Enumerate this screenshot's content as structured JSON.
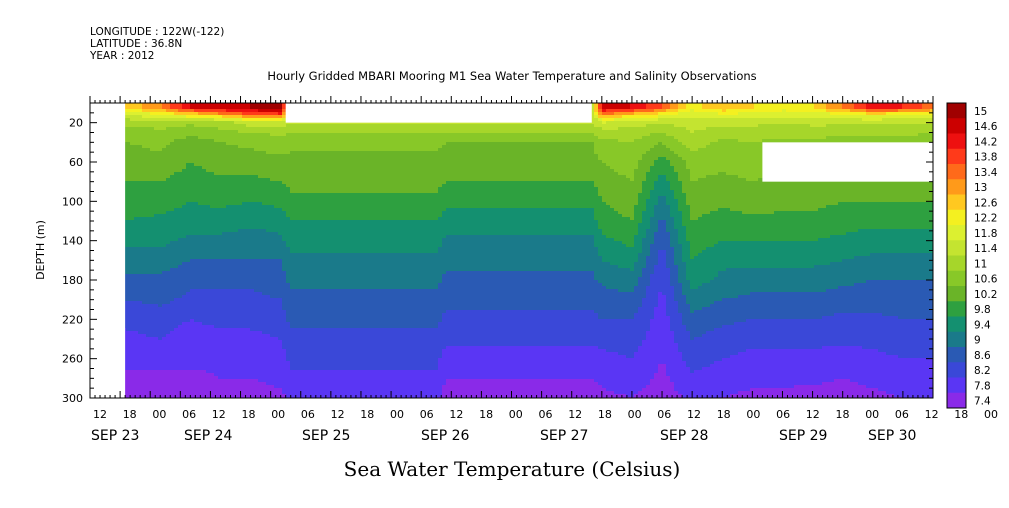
{
  "chart_data": {
    "type": "heatmap",
    "header_lines": [
      "LONGITUDE : 122W(-122)",
      "LATITUDE : 36.8N",
      "YEAR : 2012"
    ],
    "title": "Hourly Gridded MBARI Mooring M1 Sea Water Temperature and Salinity Observations",
    "variable_label": "Sea Water Temperature (Celsius)",
    "ylabel": "DEPTH (m)",
    "y_inverted": true,
    "ylim": [
      0,
      300
    ],
    "y_ticks": [
      20,
      60,
      100,
      140,
      180,
      220,
      260,
      300
    ],
    "x_unit": "hours since 2012-09-23 00:00",
    "xlim": [
      6,
      174
    ],
    "x_tick_labels": [
      "12",
      "18",
      "00",
      "06",
      "12",
      "18",
      "00",
      "06",
      "12",
      "18",
      "00",
      "06",
      "12",
      "18",
      "00",
      "06",
      "12",
      "18",
      "00",
      "06",
      "12",
      "18",
      "00",
      "06",
      "12",
      "18",
      "00",
      "06",
      "12",
      "18",
      "00",
      "06"
    ],
    "x_tick_hours": [
      12,
      18,
      24,
      30,
      36,
      42,
      48,
      54,
      60,
      66,
      72,
      78,
      84,
      90,
      96,
      102,
      108,
      114,
      120,
      126,
      132,
      138,
      144,
      150,
      156,
      162,
      168,
      174,
      180,
      186,
      192,
      198
    ],
    "day_labels": [
      "SEP 23",
      "SEP 24",
      "SEP 25",
      "SEP 26",
      "SEP 27",
      "SEP 28",
      "SEP 29",
      "SEP 30"
    ],
    "day_label_hours": [
      12,
      36,
      60,
      84,
      108,
      132,
      156,
      174
    ],
    "colorbar_levels": [
      "15",
      "14.6",
      "14.2",
      "13.8",
      "13.4",
      "13",
      "12.6",
      "12.2",
      "11.8",
      "11.4",
      "11",
      "10.6",
      "10.2",
      "9.8",
      "9.4",
      "9",
      "8.6",
      "8.2",
      "7.8",
      "7.4"
    ],
    "colorbar_colors": [
      "#a00000",
      "#cc0000",
      "#ee1010",
      "#ff3a1a",
      "#ff6a1a",
      "#ff9a1a",
      "#ffc820",
      "#f4f020",
      "#dcf030",
      "#c4e430",
      "#a6d62a",
      "#88c828",
      "#6ab428",
      "#2ea040",
      "#149070",
      "#1a7a8a",
      "#2a5ab4",
      "#3a48d8",
      "#5a36f4",
      "#8a2ae8"
    ],
    "missing_regions": [
      {
        "x": [
          6,
          13
        ],
        "depth": [
          0,
          300
        ]
      },
      {
        "x": [
          45,
          106
        ],
        "depth": [
          0,
          20
        ]
      },
      {
        "x": [
          140,
          174
        ],
        "depth": [
          40,
          80
        ]
      }
    ],
    "profile_depths": [
      5,
      10,
      15,
      20,
      30,
      40,
      60,
      80,
      100,
      120,
      140,
      160,
      180,
      200,
      220,
      240,
      260,
      280,
      300
    ],
    "profiles": [
      {
        "hour": 13,
        "temps": [
          12.6,
          12.0,
          11.5,
          11.1,
          10.8,
          10.6,
          10.4,
          10.2,
          10.0,
          9.8,
          9.5,
          9.2,
          8.9,
          8.6,
          8.3,
          8.1,
          7.9,
          7.7,
          7.5
        ]
      },
      {
        "hour": 20,
        "temps": [
          13.4,
          12.4,
          11.8,
          11.2,
          10.9,
          10.7,
          10.5,
          10.2,
          10.0,
          9.7,
          9.5,
          9.2,
          8.9,
          8.7,
          8.4,
          8.2,
          7.9,
          7.7,
          7.5
        ]
      },
      {
        "hour": 26,
        "temps": [
          14.6,
          13.0,
          12.0,
          11.1,
          10.7,
          10.4,
          10.2,
          10.0,
          9.8,
          9.6,
          9.3,
          9.0,
          8.7,
          8.5,
          8.2,
          8.0,
          7.9,
          7.7,
          7.6
        ]
      },
      {
        "hour": 32,
        "temps": [
          14.6,
          13.6,
          12.2,
          11.2,
          10.9,
          10.6,
          10.4,
          10.1,
          9.9,
          9.6,
          9.3,
          9.0,
          8.7,
          8.5,
          8.3,
          8.1,
          7.9,
          7.8,
          7.6
        ]
      },
      {
        "hour": 38,
        "temps": [
          15.0,
          14.2,
          12.8,
          11.6,
          11.0,
          10.7,
          10.4,
          10.1,
          9.8,
          9.5,
          9.2,
          9.0,
          8.7,
          8.5,
          8.3,
          8.1,
          7.9,
          7.8,
          7.6
        ]
      },
      {
        "hour": 44,
        "temps": [
          15.0,
          14.4,
          13.0,
          11.7,
          11.1,
          10.8,
          10.5,
          10.2,
          9.9,
          9.6,
          9.3,
          9.0,
          8.8,
          8.6,
          8.4,
          8.2,
          8.0,
          7.9,
          7.7
        ]
      },
      {
        "hour": 46,
        "temps": [
          11.4,
          11.4,
          11.4,
          11.4,
          11.0,
          10.7,
          10.5,
          10.3,
          10.1,
          9.8,
          9.6,
          9.3,
          9.1,
          8.9,
          8.7,
          8.5,
          8.3,
          8.1,
          7.9
        ]
      },
      {
        "hour": 75,
        "temps": [
          11.4,
          11.4,
          11.4,
          11.4,
          11.0,
          10.7,
          10.5,
          10.3,
          10.1,
          9.8,
          9.6,
          9.3,
          9.1,
          8.9,
          8.7,
          8.5,
          8.3,
          8.1,
          7.9
        ]
      },
      {
        "hour": 77,
        "temps": [
          11.4,
          11.4,
          11.4,
          11.4,
          11.0,
          10.6,
          10.4,
          10.2,
          9.9,
          9.6,
          9.3,
          9.1,
          8.9,
          8.7,
          8.5,
          8.3,
          8.0,
          7.8,
          7.6
        ]
      },
      {
        "hour": 106,
        "temps": [
          11.4,
          11.4,
          11.4,
          11.4,
          11.0,
          10.6,
          10.4,
          10.2,
          9.9,
          9.6,
          9.3,
          9.1,
          8.9,
          8.7,
          8.5,
          8.3,
          8.0,
          7.8,
          7.6
        ]
      },
      {
        "hour": 108,
        "temps": [
          14.8,
          13.8,
          12.6,
          11.8,
          11.2,
          10.9,
          10.6,
          10.4,
          10.2,
          10.0,
          9.7,
          9.4,
          9.1,
          8.8,
          8.6,
          8.3,
          8.1,
          7.9,
          7.7
        ]
      },
      {
        "hour": 114,
        "temps": [
          14.6,
          13.2,
          12.2,
          11.6,
          11.2,
          11.0,
          10.8,
          10.6,
          10.4,
          10.2,
          9.9,
          9.6,
          9.2,
          8.9,
          8.6,
          8.4,
          8.2,
          8.0,
          7.8
        ]
      },
      {
        "hour": 120,
        "temps": [
          13.8,
          12.6,
          12.0,
          11.4,
          11.0,
          10.6,
          10.0,
          9.6,
          9.2,
          8.9,
          8.6,
          8.4,
          8.2,
          8.1,
          8.0,
          7.9,
          7.8,
          7.7,
          7.6
        ]
      },
      {
        "hour": 126,
        "temps": [
          12.4,
          12.0,
          11.8,
          11.6,
          11.4,
          11.2,
          10.8,
          10.6,
          10.4,
          10.2,
          10.0,
          9.8,
          9.6,
          9.2,
          8.9,
          8.6,
          8.4,
          8.1,
          7.9
        ]
      },
      {
        "hour": 132,
        "temps": [
          13.0,
          12.3,
          11.9,
          11.5,
          11.2,
          10.9,
          10.7,
          10.5,
          10.3,
          10.0,
          9.8,
          9.5,
          9.3,
          9.0,
          8.7,
          8.4,
          8.2,
          8.0,
          7.8
        ]
      },
      {
        "hour": 138,
        "temps": [
          12.6,
          12.2,
          11.8,
          11.5,
          11.2,
          11.0,
          10.8,
          10.6,
          10.4,
          10.1,
          9.8,
          9.5,
          9.2,
          8.9,
          8.6,
          8.3,
          8.1,
          7.9,
          7.7
        ]
      },
      {
        "hour": 144,
        "temps": [
          12.4,
          12.0,
          11.8,
          11.4,
          11.1,
          10.9,
          10.7,
          10.5,
          10.3,
          10.1,
          9.8,
          9.5,
          9.2,
          8.9,
          8.6,
          8.3,
          8.1,
          7.9,
          7.7
        ]
      },
      {
        "hour": 150,
        "temps": [
          12.6,
          12.1,
          11.8,
          11.5,
          11.2,
          10.9,
          10.7,
          10.5,
          10.3,
          10.1,
          9.8,
          9.5,
          9.2,
          8.9,
          8.6,
          8.3,
          8.1,
          7.9,
          7.6
        ]
      },
      {
        "hour": 156,
        "temps": [
          13.4,
          12.4,
          11.9,
          11.5,
          11.1,
          10.8,
          10.6,
          10.4,
          10.2,
          10.0,
          9.7,
          9.4,
          9.1,
          8.8,
          8.5,
          8.3,
          8.0,
          7.8,
          7.6
        ]
      },
      {
        "hour": 162,
        "temps": [
          14.4,
          12.8,
          12.0,
          11.5,
          11.1,
          10.8,
          10.6,
          10.4,
          10.2,
          9.9,
          9.6,
          9.3,
          9.0,
          8.8,
          8.5,
          8.3,
          8.1,
          7.9,
          7.7
        ]
      },
      {
        "hour": 168,
        "temps": [
          14.2,
          12.6,
          11.9,
          11.5,
          11.1,
          10.8,
          10.6,
          10.4,
          10.2,
          9.9,
          9.6,
          9.3,
          9.0,
          8.8,
          8.6,
          8.4,
          8.2,
          8.0,
          7.8
        ]
      },
      {
        "hour": 174,
        "temps": [
          13.6,
          12.4,
          11.8,
          11.4,
          11.0,
          10.8,
          10.6,
          10.4,
          10.2,
          9.9,
          9.6,
          9.3,
          9.0,
          8.8,
          8.6,
          8.4,
          8.2,
          8.0,
          7.8
        ]
      }
    ]
  }
}
